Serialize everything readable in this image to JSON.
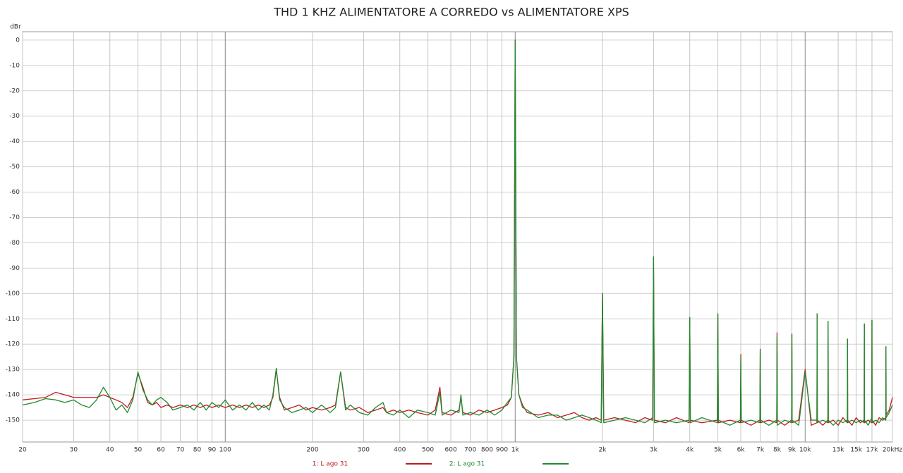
{
  "chart_data": {
    "type": "line",
    "title": "THD 1 KHZ ALIMENTATORE A CORREDO vs ALIMENTATORE XPS",
    "y_label": "dBr",
    "xscale": "log",
    "grid": true,
    "legend": "bottom",
    "xlim": [
      20,
      20000
    ],
    "ylim": [
      -158.6,
      3.3
    ],
    "yticks": [
      0,
      -10,
      -20,
      -30,
      -40,
      -50,
      -60,
      -70,
      -80,
      -90,
      -100,
      -110,
      -120,
      -130,
      -140,
      -150
    ],
    "xticks": [
      20,
      30,
      40,
      50,
      60,
      70,
      80,
      90,
      100,
      200,
      300,
      400,
      500,
      600,
      700,
      800,
      900,
      {
        "value": 1000,
        "label": "1k"
      },
      {
        "value": 2000,
        "label": "2k"
      },
      {
        "value": 3000,
        "label": "3k"
      },
      {
        "value": 4000,
        "label": "4k"
      },
      {
        "value": 5000,
        "label": "5k"
      },
      {
        "value": 6000,
        "label": "6k"
      },
      {
        "value": 7000,
        "label": "7k"
      },
      {
        "value": 8000,
        "label": "8k"
      },
      {
        "value": 9000,
        "label": "9k"
      },
      {
        "value": 10000,
        "label": "10k"
      },
      {
        "value": 13000,
        "label": "13k"
      },
      {
        "value": 15000,
        "label": "15k"
      },
      {
        "value": 17000,
        "label": "17k"
      },
      {
        "value": 20000,
        "label": "20kHz"
      }
    ],
    "x": [
      20,
      22,
      24,
      26,
      28,
      30,
      32,
      34,
      36,
      38,
      40,
      42,
      44,
      46,
      48,
      50,
      52,
      54,
      56,
      58,
      60,
      63,
      66,
      70,
      74,
      78,
      82,
      86,
      90,
      95,
      100,
      106,
      112,
      118,
      124,
      130,
      136,
      142,
      146,
      150,
      154,
      160,
      170,
      180,
      190,
      200,
      215,
      230,
      240,
      250,
      260,
      270,
      290,
      310,
      330,
      350,
      360,
      380,
      400,
      430,
      460,
      500,
      530,
      550,
      560,
      600,
      640,
      650,
      660,
      700,
      750,
      800,
      850,
      900,
      940,
      970,
      990,
      1000,
      1010,
      1030,
      1060,
      1100,
      1200,
      1300,
      1400,
      1500,
      1600,
      1700,
      1800,
      1900,
      1980,
      2000,
      2020,
      2200,
      2400,
      2600,
      2800,
      2980,
      3000,
      3020,
      3300,
      3600,
      3980,
      4000,
      4020,
      4400,
      4980,
      5000,
      5020,
      5500,
      5980,
      6000,
      6020,
      6500,
      6980,
      7000,
      7020,
      7500,
      7980,
      8000,
      8020,
      8500,
      8980,
      9000,
      9020,
      9500,
      10000,
      10500,
      10980,
      11000,
      11020,
      11500,
      11980,
      12000,
      12020,
      12500,
      13000,
      13500,
      13980,
      14000,
      14020,
      14500,
      15000,
      15500,
      15980,
      16000,
      16020,
      16500,
      16980,
      17000,
      17020,
      17500,
      18000,
      18500,
      18980,
      19000,
      19020,
      19500,
      20000
    ],
    "series": [
      {
        "name": "1: L ago 31",
        "color": "#c0191e",
        "values": [
          -142,
          -141.5,
          -141,
          -139,
          -140,
          -141,
          -141,
          -141,
          -141,
          -140,
          -141,
          -142,
          -143,
          -145,
          -141,
          -131.5,
          -137,
          -143,
          -144,
          -143,
          -145,
          -144,
          -145,
          -144,
          -145,
          -144,
          -145,
          -144,
          -145,
          -144,
          -145,
          -144,
          -145,
          -144,
          -145,
          -144,
          -145,
          -144,
          -141,
          -130,
          -141,
          -146,
          -145,
          -144,
          -146,
          -145,
          -146,
          -145,
          -144,
          -131,
          -145,
          -146,
          -145,
          -147,
          -146,
          -145,
          -147,
          -146,
          -147,
          -146,
          -147,
          -148,
          -146,
          -137,
          -147,
          -148,
          -146,
          -141,
          -147,
          -148,
          -146,
          -147,
          -146,
          -145,
          -144,
          -141,
          -125,
          0,
          -125,
          -140,
          -144,
          -147,
          -148,
          -147,
          -149,
          -148,
          -147,
          -149,
          -150,
          -149,
          -150,
          -100,
          -150,
          -149,
          -150,
          -151,
          -149,
          -150,
          -85.5,
          -150,
          -151,
          -149,
          -151,
          -109.5,
          -150,
          -151,
          -150,
          -108,
          -151,
          -150,
          -151,
          -124,
          -150,
          -152,
          -150,
          -122,
          -151,
          -150,
          -151,
          -115.5,
          -150,
          -152,
          -150,
          -116,
          -151,
          -150,
          -130,
          -152,
          -151,
          -108,
          -150,
          -152,
          -150,
          -111,
          -151,
          -150,
          -152,
          -149,
          -151,
          -118,
          -150,
          -152,
          -149,
          -151,
          -150,
          -112,
          -151,
          -150,
          -151,
          -110.5,
          -150,
          -152,
          -149,
          -150,
          -149,
          -121,
          -148,
          -146,
          -141
        ]
      },
      {
        "name": "2: L ago 31",
        "color": "#1e8a2e",
        "values": [
          -144,
          -143,
          -141.5,
          -142,
          -143,
          -142,
          -144,
          -145,
          -142,
          -137,
          -141,
          -146,
          -144,
          -147,
          -142,
          -131,
          -138,
          -142,
          -144,
          -142,
          -141,
          -143,
          -146,
          -145,
          -144,
          -146,
          -143,
          -146,
          -143,
          -145,
          -142,
          -146,
          -144,
          -146,
          -143,
          -146,
          -144,
          -146,
          -140,
          -129.5,
          -142,
          -145,
          -147,
          -146,
          -145,
          -147,
          -144,
          -147,
          -145,
          -131,
          -146,
          -144,
          -147,
          -148,
          -145,
          -143,
          -147,
          -148,
          -146,
          -149,
          -146,
          -147,
          -148,
          -139,
          -148,
          -146,
          -147,
          -140,
          -148,
          -147,
          -148,
          -146,
          -148,
          -146,
          -143,
          -141,
          -125,
          0,
          -125,
          -140,
          -145,
          -146,
          -149,
          -148,
          -148,
          -150,
          -149,
          -148,
          -149,
          -150,
          -151,
          -100,
          -151,
          -150,
          -149,
          -150,
          -151,
          -149,
          -85.5,
          -151,
          -150,
          -151,
          -150,
          -109.5,
          -151,
          -149,
          -151,
          -108,
          -150,
          -152,
          -150,
          -125,
          -151,
          -150,
          -151,
          -122,
          -150,
          -152,
          -150,
          -117,
          -152,
          -150,
          -151,
          -116,
          -150,
          -152,
          -131,
          -150,
          -150,
          -108,
          -151,
          -150,
          -151,
          -111,
          -150,
          -152,
          -150,
          -151,
          -150,
          -118,
          -151,
          -150,
          -151,
          -150,
          -151,
          -112,
          -150,
          -152,
          -149,
          -110.5,
          -151,
          -150,
          -151,
          -149,
          -150,
          -121,
          -149,
          -147,
          -144
        ]
      }
    ]
  }
}
